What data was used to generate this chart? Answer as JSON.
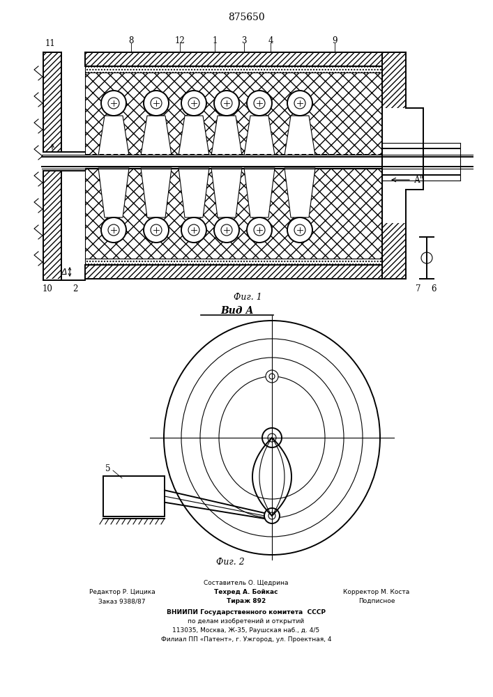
{
  "title": "875650",
  "fig1_label": "Фиг. 1",
  "fig2_label": "Фиг. 2",
  "vid_a_label": "Вид А",
  "bg_color": "#ffffff",
  "line_color": "#000000"
}
